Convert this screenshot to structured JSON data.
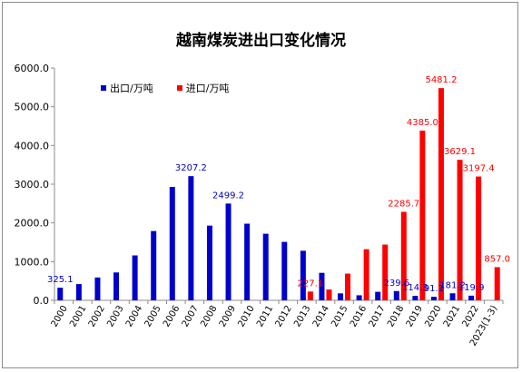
{
  "colors": {
    "export": "#0000cc",
    "import": "#ff0000",
    "axis": "#8c8c8c",
    "text": "#000000"
  },
  "chart_data": {
    "type": "bar",
    "title": "越南煤炭进出口变化情况",
    "xlabel": "",
    "ylabel": "",
    "ylim": [
      0,
      6000
    ],
    "yticks": [
      "0.0",
      "1000.0",
      "2000.0",
      "3000.0",
      "4000.0",
      "5000.0",
      "6000.0"
    ],
    "grid": false,
    "legend_position": "top-left",
    "categories": [
      "2000",
      "2001",
      "2002",
      "2003",
      "2004",
      "2005",
      "2006",
      "2007",
      "2008",
      "2009",
      "2010",
      "2011",
      "2012",
      "2013",
      "2014",
      "2015",
      "2016",
      "2017",
      "2018",
      "2019",
      "2020",
      "2021",
      "2022",
      "2023(1-3)"
    ],
    "series": [
      {
        "name": "出口/万吨",
        "color": "#0000cc",
        "values": [
          325.1,
          420,
          590,
          720,
          1160,
          1790,
          2930,
          3207.2,
          1930,
          2499.2,
          1980,
          1720,
          1510,
          1280,
          710,
          180,
          130,
          220,
          239.6,
          114.3,
          91.1,
          181.2,
          119.9,
          null
        ],
        "labels": [
          "325.1",
          "",
          "",
          "",
          "",
          "",
          "",
          "3207.2",
          "",
          "2499.2",
          "",
          "",
          "",
          "",
          "",
          "",
          "",
          "",
          "239.6",
          "114.3",
          "91.1",
          "181.2",
          "119.9",
          ""
        ]
      },
      {
        "name": "进口/万吨",
        "color": "#ff0000",
        "values": [
          null,
          null,
          null,
          null,
          null,
          null,
          null,
          null,
          null,
          null,
          null,
          null,
          null,
          227.1,
          280,
          690,
          1320,
          1440,
          2285.7,
          4385.0,
          5481.2,
          3629.1,
          3197.4,
          857.0
        ],
        "labels": [
          "",
          "",
          "",
          "",
          "",
          "",
          "",
          "",
          "",
          "",
          "",
          "",
          "",
          "227.1",
          "",
          "",
          "",
          "",
          "2285.7",
          "4385.0",
          "5481.2",
          "3629.1",
          "3197.4",
          "857.0"
        ]
      }
    ]
  }
}
